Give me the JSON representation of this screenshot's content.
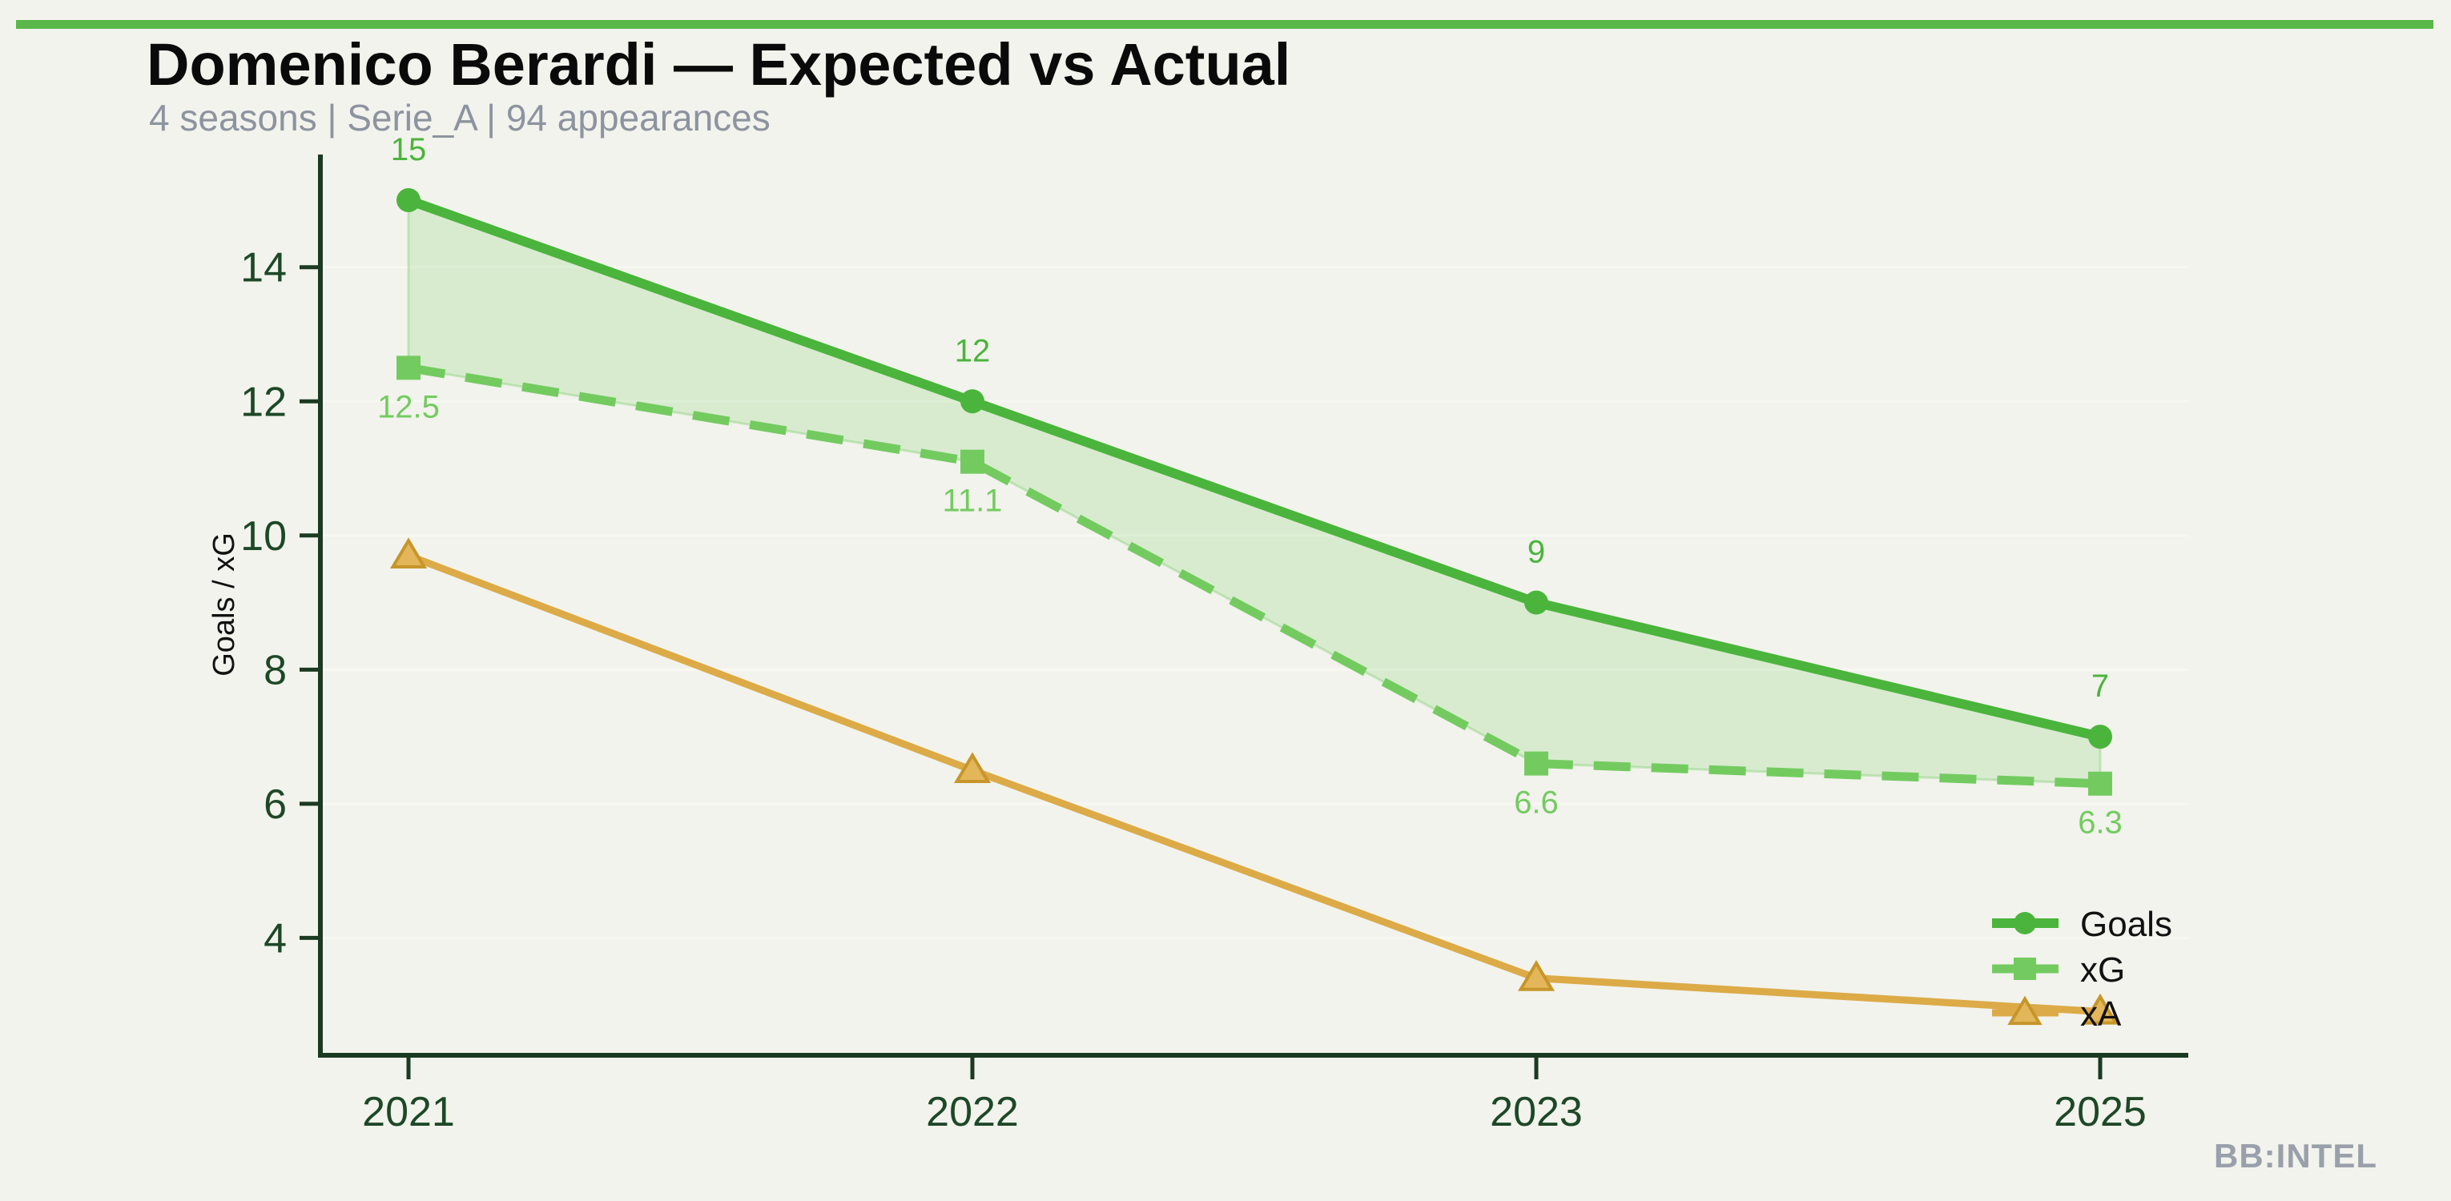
{
  "page": {
    "background": "#f2f3ec"
  },
  "header": {
    "accent_bar_color": "#5ab74a",
    "title": "Domenico Berardi — Expected vs Actual",
    "subtitle": "4 seasons | Serie_A | 94 appearances",
    "title_color": "#0a0a0a",
    "subtitle_color": "#8d939f"
  },
  "footer": {
    "brand": "BB:INTEL",
    "brand_color": "#9aa0ab"
  },
  "chart_data": {
    "type": "line",
    "title": "Domenico Berardi — Expected vs Actual",
    "categories": [
      "2021",
      "2022",
      "2023",
      "2025"
    ],
    "series": [
      {
        "name": "Goals",
        "values": [
          15,
          12,
          9,
          7
        ],
        "point_labels": [
          "15",
          "12",
          "9",
          "7"
        ],
        "label_position": "above",
        "color": "#4bb43c",
        "marker": "circle",
        "line_style": "solid"
      },
      {
        "name": "xG",
        "values": [
          12.5,
          11.1,
          6.6,
          6.3
        ],
        "point_labels": [
          "12.5",
          "11.1",
          "6.6",
          "6.3"
        ],
        "label_position": "below",
        "color": "#73cb60",
        "marker": "square",
        "line_style": "dashed"
      },
      {
        "name": "xA",
        "values": [
          9.7,
          6.5,
          3.4,
          2.9
        ],
        "point_labels": null,
        "label_position": null,
        "color": "#dcab48",
        "marker": "triangle",
        "marker_fill": "#e3b65a",
        "marker_edge": "#c6962a",
        "line_style": "solid"
      }
    ],
    "band_between": [
      "Goals",
      "xG"
    ],
    "band_color": "rgba(116,204,97,0.20)",
    "band_edge_color": "rgba(116,204,97,0.35)",
    "xlabel": "",
    "ylabel": "Goals / xG",
    "yticks": [
      4,
      6,
      8,
      10,
      12,
      14
    ],
    "ylim": [
      2.25,
      15.68
    ],
    "grid": "horizontal",
    "gridline_color": "#f8f8f2",
    "axis_color": "#1b3a22",
    "tick_label_color": "#1d4828",
    "legend": {
      "position": "lower-right",
      "entries": [
        "Goals",
        "xG",
        "xA"
      ]
    }
  }
}
